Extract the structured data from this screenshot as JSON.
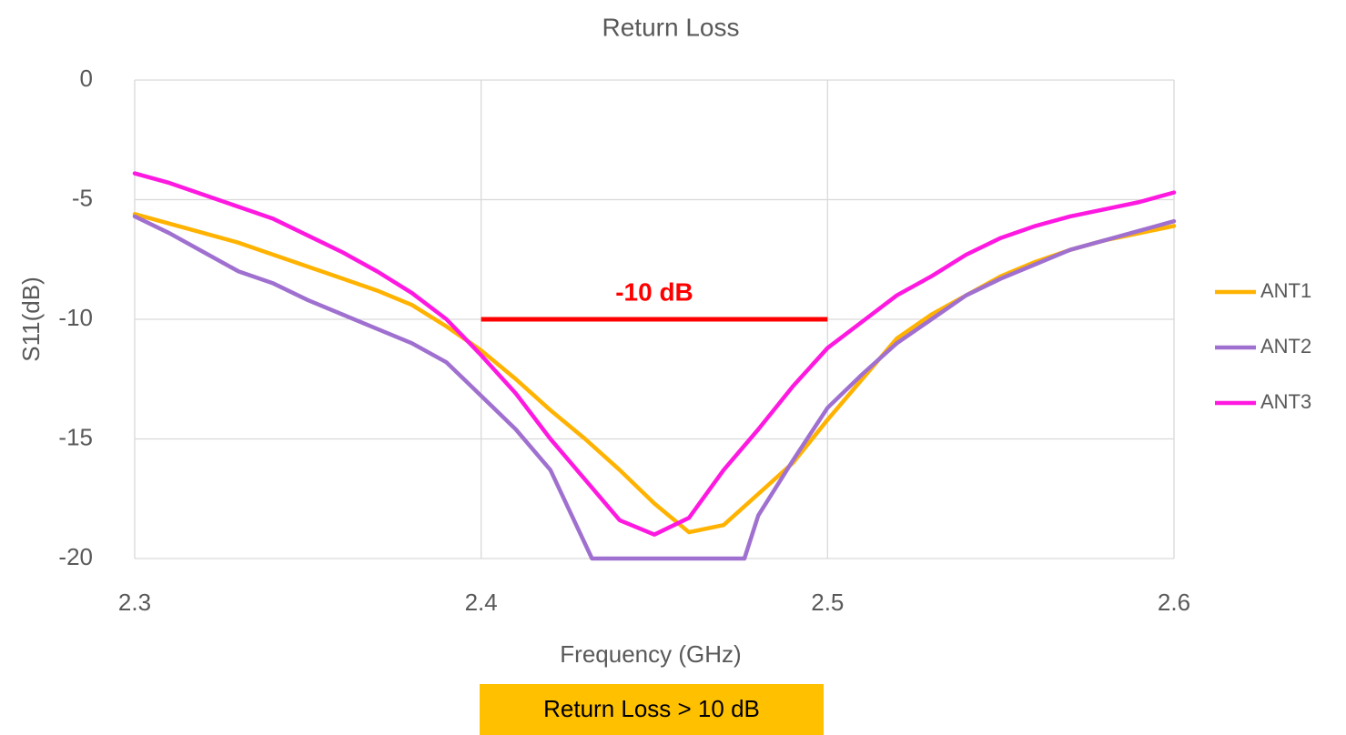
{
  "chart_data": {
    "type": "line",
    "title": "Return Loss",
    "x_label": "Frequency (GHz)",
    "y_label": "S11(dB)",
    "xlim": [
      2.3,
      2.6
    ],
    "ylim": [
      -20,
      0
    ],
    "xticks": [
      2.3,
      2.4,
      2.5,
      2.6
    ],
    "yticks": [
      0,
      -5,
      -10,
      -15,
      -20
    ],
    "grid": true,
    "legend": "right",
    "series": [
      {
        "name": "ANT1",
        "color": "#ffb300",
        "x": [
          2.3,
          2.31,
          2.32,
          2.33,
          2.34,
          2.35,
          2.36,
          2.37,
          2.38,
          2.39,
          2.4,
          2.41,
          2.42,
          2.43,
          2.44,
          2.45,
          2.46,
          2.47,
          2.48,
          2.49,
          2.5,
          2.51,
          2.52,
          2.53,
          2.54,
          2.55,
          2.56,
          2.57,
          2.58,
          2.59,
          2.6
        ],
        "values": [
          -5.6,
          -6.0,
          -6.4,
          -6.8,
          -7.3,
          -7.8,
          -8.3,
          -8.8,
          -9.4,
          -10.3,
          -11.3,
          -12.5,
          -13.8,
          -15.0,
          -16.3,
          -17.7,
          -18.9,
          -18.6,
          -17.3,
          -16.0,
          -14.2,
          -12.5,
          -10.8,
          -9.8,
          -9.0,
          -8.2,
          -7.6,
          -7.1,
          -6.7,
          -6.4,
          -6.1
        ]
      },
      {
        "name": "ANT2",
        "color": "#a070d0",
        "x": [
          2.3,
          2.31,
          2.32,
          2.33,
          2.34,
          2.35,
          2.36,
          2.37,
          2.38,
          2.39,
          2.4,
          2.41,
          2.42,
          2.432,
          2.476,
          2.48,
          2.49,
          2.5,
          2.51,
          2.52,
          2.53,
          2.54,
          2.55,
          2.56,
          2.57,
          2.58,
          2.59,
          2.6
        ],
        "values": [
          -5.7,
          -6.4,
          -7.2,
          -8.0,
          -8.5,
          -9.2,
          -9.8,
          -10.4,
          -11.0,
          -11.8,
          -13.2,
          -14.6,
          -16.3,
          -20,
          -20,
          -18.2,
          -15.9,
          -13.7,
          -12.3,
          -11.0,
          -10.0,
          -9.0,
          -8.3,
          -7.7,
          -7.1,
          -6.7,
          -6.3,
          -5.9
        ]
      },
      {
        "name": "ANT3",
        "color": "#ff19e0",
        "x": [
          2.3,
          2.31,
          2.32,
          2.33,
          2.34,
          2.35,
          2.36,
          2.37,
          2.38,
          2.39,
          2.4,
          2.41,
          2.42,
          2.43,
          2.44,
          2.45,
          2.46,
          2.47,
          2.48,
          2.49,
          2.5,
          2.51,
          2.52,
          2.53,
          2.54,
          2.55,
          2.56,
          2.57,
          2.58,
          2.59,
          2.6
        ],
        "values": [
          -3.9,
          -4.3,
          -4.8,
          -5.3,
          -5.8,
          -6.5,
          -7.2,
          -8.0,
          -8.9,
          -10.0,
          -11.5,
          -13.1,
          -15.0,
          -16.7,
          -18.4,
          -19.0,
          -18.3,
          -16.3,
          -14.6,
          -12.8,
          -11.2,
          -10.1,
          -9.0,
          -8.2,
          -7.3,
          -6.6,
          -6.1,
          -5.7,
          -5.4,
          -5.1,
          -4.7
        ]
      }
    ],
    "annotation": {
      "text": "-10 dB",
      "color": "#ff0000",
      "x": [
        2.4,
        2.5
      ],
      "y": -10
    },
    "note": {
      "text": "Return Loss > 10 dB",
      "color": "#ffc000"
    }
  }
}
